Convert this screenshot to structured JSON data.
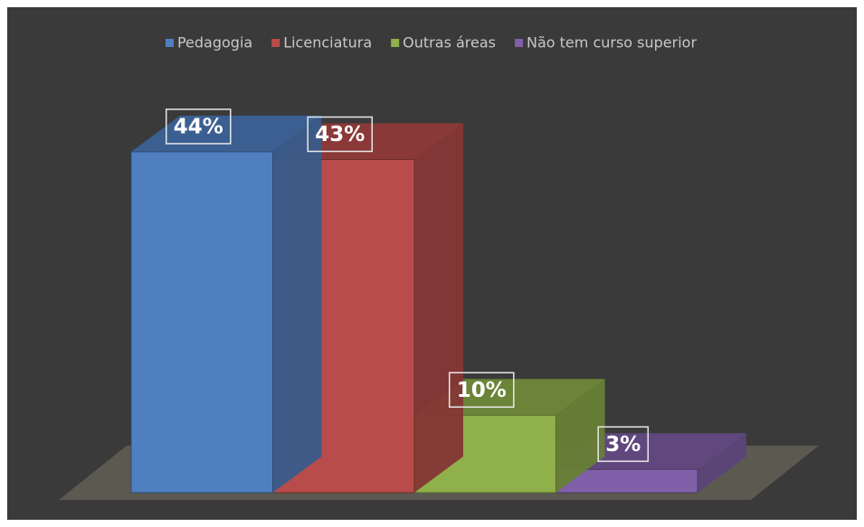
{
  "chart_data": {
    "type": "bar",
    "series": [
      {
        "name": "Pedagogia",
        "color": "#4f7fc0",
        "values": [
          44
        ],
        "value_labels": [
          "44%"
        ]
      },
      {
        "name": "Licenciatura",
        "color": "#b84c4a",
        "values": [
          43
        ],
        "value_labels": [
          "43%"
        ]
      },
      {
        "name": "Outras áreas",
        "color": "#8fb04a",
        "values": [
          10
        ],
        "value_labels": [
          "10%"
        ]
      },
      {
        "name": "Não tem curso superior",
        "color": "#8060a8",
        "values": [
          3
        ],
        "value_labels": [
          "3%"
        ]
      }
    ],
    "legend": "top"
  }
}
